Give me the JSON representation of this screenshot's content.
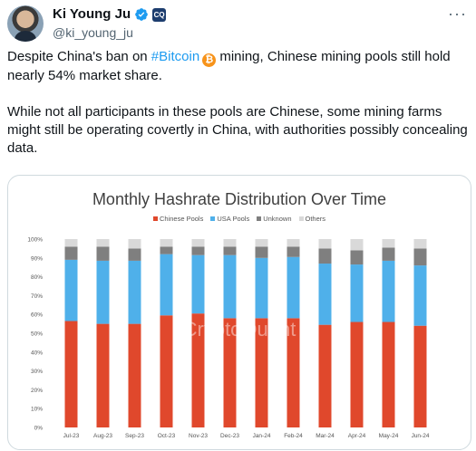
{
  "user": {
    "name": "Ki Young Ju",
    "handle": "@ki_young_ju",
    "affiliation_badge": "CQ"
  },
  "tweet": {
    "p1_before": "Despite China's ban on ",
    "hashtag": "#Bitcoin",
    "btc_glyph": "₿",
    "p1_after": " mining, Chinese mining pools still hold nearly 54% market share.",
    "p2": "While not all participants in these pools are Chinese, some mining farms might still be operating covertly in China, with authorities possibly concealing data."
  },
  "chart_data": {
    "type": "bar",
    "stacked": true,
    "title": "Monthly Hashrate Distribution Over Time",
    "watermark": "CryptoQuant",
    "categories": [
      "Jul-23",
      "Aug-23",
      "Sep-23",
      "Oct-23",
      "Nov-23",
      "Dec-23",
      "Jan-24",
      "Feb-24",
      "Mar-24",
      "Apr-24",
      "May-24",
      "Jun-24"
    ],
    "series": [
      {
        "name": "Chinese Pools",
        "color": "#e0482c",
        "values": [
          56.5,
          55,
          55,
          59.5,
          60.5,
          58,
          58,
          58,
          54.5,
          56,
          56,
          54
        ]
      },
      {
        "name": "USA Pools",
        "color": "#4fb0ea",
        "values": [
          32.5,
          33.5,
          33.5,
          32.5,
          31,
          33.5,
          32,
          32.5,
          32.5,
          30.5,
          32.5,
          32
        ]
      },
      {
        "name": "Unknown",
        "color": "#7f7f7f",
        "values": [
          7,
          7.5,
          6.5,
          4,
          4.5,
          4.5,
          6,
          5.5,
          8,
          7.5,
          7,
          9
        ]
      },
      {
        "name": "Others",
        "color": "#d9d9d9",
        "values": [
          4,
          4,
          5,
          4,
          4,
          4,
          4,
          4,
          5,
          6,
          4.5,
          5
        ]
      }
    ],
    "yticks": [
      "0%",
      "10%",
      "20%",
      "30%",
      "40%",
      "50%",
      "60%",
      "70%",
      "80%",
      "90%",
      "100%"
    ],
    "ylim": [
      0,
      100
    ],
    "legend_position": "top-center",
    "grid": false
  },
  "colors": {
    "link": "#1d9bf0",
    "verified": "#1d9bf0",
    "bitcoin": "#f7931a"
  }
}
